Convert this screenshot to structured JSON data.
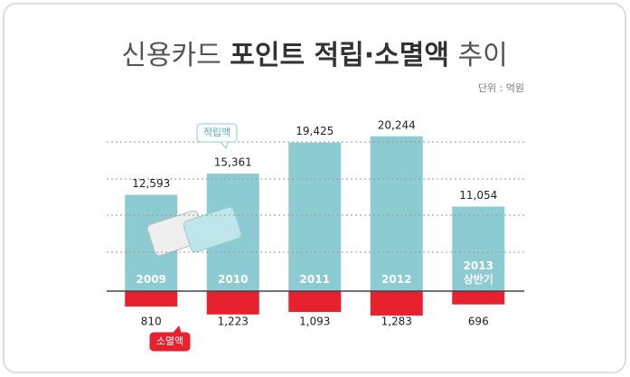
{
  "chart_data": {
    "type": "bar",
    "title": [
      "신용카드",
      "포인트 적립·소멸액",
      "추이"
    ],
    "unit": "단위 : 억원",
    "categories": [
      "2009",
      "2010",
      "2011",
      "2012",
      "2013 상반기"
    ],
    "ylim": [
      0,
      24000
    ],
    "y2lim": [
      0,
      1800
    ],
    "grid": true,
    "series": [
      {
        "name": "적립액",
        "color": "#8ccbd2",
        "values": [
          12593,
          15361,
          19425,
          20244,
          11054
        ],
        "value_labels": [
          "12,593",
          "15,361",
          "19,425",
          "20,244",
          "11,054"
        ]
      },
      {
        "name": "소멸액",
        "color": "#e8212e",
        "axis": "y2",
        "values": [
          810,
          1223,
          1093,
          1283,
          696
        ],
        "value_labels": [
          "810",
          "1,223",
          "1,093",
          "1,283",
          "696"
        ]
      }
    ]
  }
}
